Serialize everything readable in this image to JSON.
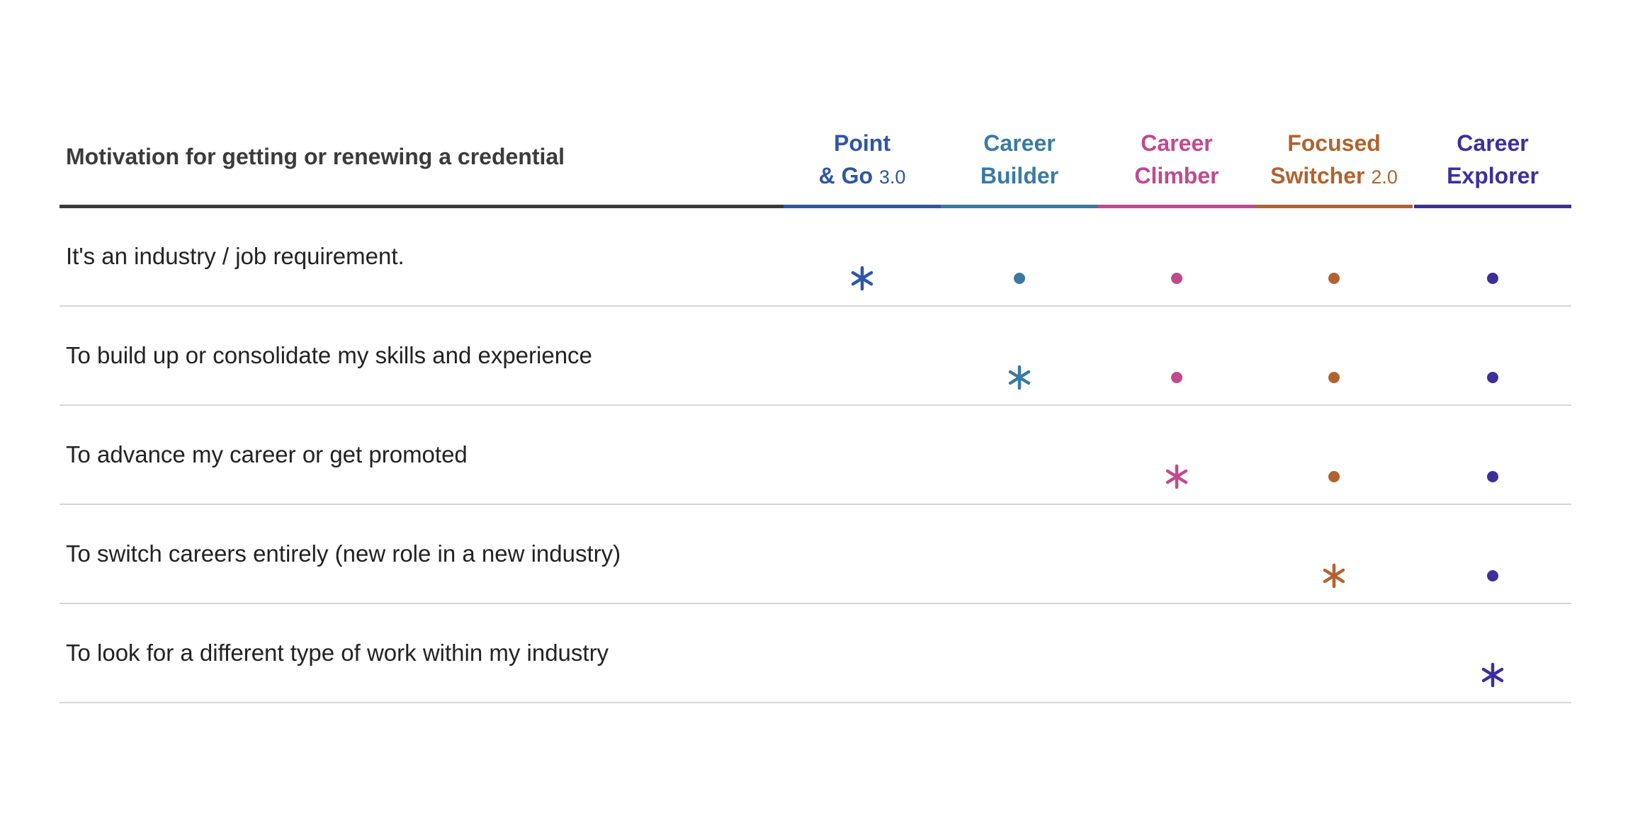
{
  "header": {
    "title": "Motivation for getting or renewing a credential",
    "columns": [
      {
        "line1": "Point",
        "line2": "& Go",
        "suffix": "3.0",
        "color": "#2f55a4"
      },
      {
        "line1": "Career",
        "line2": "Builder",
        "suffix": "",
        "color": "#3b7aa0"
      },
      {
        "line1": "Career",
        "line2": "Climber",
        "suffix": "",
        "color": "#c04a8c"
      },
      {
        "line1": "Focused",
        "line2": "Switcher",
        "suffix": "2.0",
        "color": "#b0632f"
      },
      {
        "line1": "Career",
        "line2": "Explorer",
        "suffix": "",
        "color": "#3d2f9a"
      }
    ]
  },
  "rows": [
    {
      "label": "It's an industry / job requirement.",
      "marks": [
        "star",
        "dot",
        "dot",
        "dot",
        "dot"
      ]
    },
    {
      "label": "To build up or consolidate my skills and experience",
      "marks": [
        "none",
        "star",
        "dot",
        "dot",
        "dot"
      ]
    },
    {
      "label": "To advance my career or get promoted",
      "marks": [
        "none",
        "none",
        "star",
        "dot",
        "dot"
      ]
    },
    {
      "label": "To switch careers entirely (new role in a new industry)",
      "marks": [
        "none",
        "none",
        "none",
        "star",
        "dot"
      ]
    },
    {
      "label": "To look for a different type of work within my industry",
      "marks": [
        "none",
        "none",
        "none",
        "none",
        "star"
      ]
    }
  ],
  "legend": {
    "star": "asterisk-icon",
    "dot": "dot-icon"
  }
}
